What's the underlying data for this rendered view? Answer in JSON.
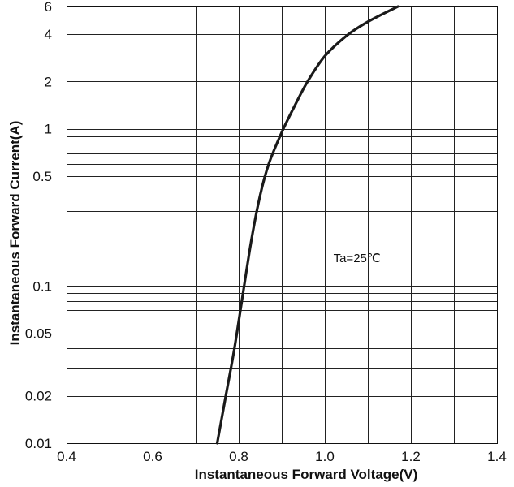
{
  "chart_data": {
    "type": "line",
    "title": "",
    "xlabel": "Instantaneous Forward Voltage(V)",
    "ylabel": "Instantaneous Forward Current(A)",
    "xscale": "linear",
    "yscale": "log",
    "xlim": [
      0.4,
      1.4
    ],
    "ylim": [
      0.01,
      6
    ],
    "grid": true,
    "x_ticks": [
      0.4,
      0.6,
      0.8,
      1.0,
      1.2,
      1.4
    ],
    "x_tick_labels": [
      "0.4",
      "0.6",
      "0.8",
      "1.0",
      "1.2",
      "1.4"
    ],
    "y_ticks": [
      0.01,
      0.02,
      0.05,
      0.1,
      0.5,
      1,
      2,
      4,
      6
    ],
    "y_tick_labels": [
      "0.01",
      "0.02",
      "0.05",
      "0.1",
      "0.5",
      "1",
      "2",
      "4",
      "6"
    ],
    "x_gridlines": [
      0.4,
      0.5,
      0.6,
      0.7,
      0.8,
      0.9,
      1.0,
      1.1,
      1.2,
      1.3,
      1.4
    ],
    "y_gridlines": [
      0.01,
      0.02,
      0.03,
      0.04,
      0.05,
      0.06,
      0.07,
      0.08,
      0.09,
      0.1,
      0.2,
      0.3,
      0.4,
      0.5,
      0.6,
      0.7,
      0.8,
      0.9,
      1,
      2,
      3,
      4,
      5,
      6
    ],
    "annotations": [
      {
        "text": "Ta=25℃",
        "x": 1.02,
        "y": 0.15
      }
    ],
    "series": [
      {
        "x": [
          0.75,
          0.77,
          0.79,
          0.81,
          0.83,
          0.85,
          0.87,
          0.9,
          0.93,
          0.96,
          1.0,
          1.05,
          1.1,
          1.17
        ],
        "y": [
          0.01,
          0.02,
          0.04,
          0.09,
          0.2,
          0.38,
          0.6,
          0.95,
          1.4,
          2.0,
          2.9,
          3.9,
          4.8,
          6.0
        ]
      }
    ]
  }
}
